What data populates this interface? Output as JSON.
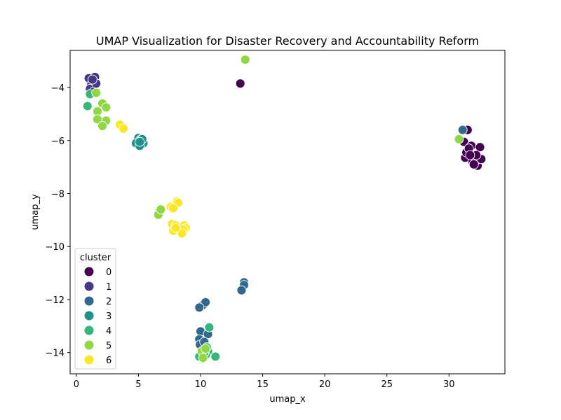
{
  "chart_data": {
    "type": "scatter",
    "title": "UMAP Visualization for Disaster Recovery and Accountability Reform",
    "xlabel": "umap_x",
    "ylabel": "umap_y",
    "xlim": [
      -0.5,
      34.5
    ],
    "ylim": [
      -14.8,
      -2.6
    ],
    "xticks": [
      0,
      5,
      10,
      15,
      20,
      25,
      30
    ],
    "yticks": [
      -14,
      -12,
      -10,
      -8,
      -6,
      -4
    ],
    "grid": false,
    "legend": {
      "title": "cluster",
      "placement": "lower-left"
    },
    "series": [
      {
        "name": "0",
        "color": "#440154",
        "points": [
          [
            13.2,
            -3.85
          ],
          [
            31.2,
            -6.05
          ],
          [
            31.5,
            -5.6
          ],
          [
            31.3,
            -6.65
          ],
          [
            31.4,
            -6.45
          ],
          [
            31.8,
            -6.2
          ],
          [
            31.9,
            -6.8
          ],
          [
            32.1,
            -6.6
          ],
          [
            32.3,
            -6.95
          ],
          [
            32.4,
            -6.7
          ],
          [
            32.5,
            -6.25
          ],
          [
            32.6,
            -6.7
          ],
          [
            31.6,
            -6.3
          ],
          [
            32.2,
            -6.55
          ],
          [
            31.7,
            -6.55
          ],
          [
            32.0,
            -6.9
          ]
        ]
      },
      {
        "name": "1",
        "color": "#443983",
        "points": [
          [
            1.0,
            -3.65
          ],
          [
            1.5,
            -3.6
          ],
          [
            1.3,
            -3.75
          ],
          [
            1.2,
            -3.9
          ],
          [
            1.1,
            -4.05
          ],
          [
            1.4,
            -4.15
          ],
          [
            1.6,
            -3.85
          ],
          [
            1.3,
            -3.7
          ]
        ]
      },
      {
        "name": "2",
        "color": "#31688e",
        "points": [
          [
            13.5,
            -11.35
          ],
          [
            13.5,
            -11.45
          ],
          [
            13.3,
            -11.65
          ],
          [
            10.2,
            -12.2
          ],
          [
            10.4,
            -12.1
          ],
          [
            9.9,
            -12.3
          ],
          [
            10.0,
            -13.2
          ],
          [
            10.6,
            -13.3
          ],
          [
            9.9,
            -13.5
          ],
          [
            9.95,
            -13.7
          ],
          [
            10.3,
            -13.6
          ],
          [
            31.1,
            -5.6
          ]
        ]
      },
      {
        "name": "3",
        "color": "#21918c",
        "points": [
          [
            5.0,
            -5.9
          ],
          [
            5.2,
            -5.95
          ],
          [
            5.4,
            -6.1
          ],
          [
            4.8,
            -6.1
          ],
          [
            5.1,
            -6.2
          ],
          [
            5.2,
            -6.0
          ],
          [
            5.3,
            -5.95
          ],
          [
            5.1,
            -6.05
          ]
        ]
      },
      {
        "name": "4",
        "color": "#35b779",
        "points": [
          [
            0.9,
            -4.7
          ],
          [
            1.1,
            -4.25
          ],
          [
            10.7,
            -13.05
          ],
          [
            11.2,
            -14.15
          ],
          [
            10.6,
            -13.95
          ],
          [
            10.4,
            -14.1
          ],
          [
            10.1,
            -14.2
          ],
          [
            9.9,
            -14.15
          ],
          [
            10.5,
            -13.8
          ],
          [
            10.3,
            -14.0
          ]
        ]
      },
      {
        "name": "5",
        "color": "#90d743",
        "points": [
          [
            13.6,
            -2.95
          ],
          [
            1.6,
            -4.2
          ],
          [
            2.1,
            -4.6
          ],
          [
            2.4,
            -4.75
          ],
          [
            1.7,
            -4.9
          ],
          [
            2.4,
            -5.25
          ],
          [
            1.7,
            -5.2
          ],
          [
            2.1,
            -5.45
          ],
          [
            30.8,
            -5.95
          ],
          [
            6.7,
            -8.65
          ],
          [
            6.6,
            -8.8
          ],
          [
            6.8,
            -8.6
          ],
          [
            10.1,
            -13.95
          ],
          [
            10.2,
            -14.2
          ],
          [
            10.4,
            -13.85
          ]
        ]
      },
      {
        "name": "6",
        "color": "#fde725",
        "points": [
          [
            3.5,
            -5.4
          ],
          [
            3.8,
            -5.55
          ],
          [
            8.1,
            -8.3
          ],
          [
            8.2,
            -8.35
          ],
          [
            7.6,
            -8.5
          ],
          [
            7.8,
            -8.55
          ],
          [
            7.7,
            -9.15
          ],
          [
            8.0,
            -9.2
          ],
          [
            8.7,
            -9.2
          ],
          [
            8.8,
            -9.3
          ],
          [
            8.6,
            -9.35
          ],
          [
            7.8,
            -9.4
          ],
          [
            8.5,
            -9.5
          ],
          [
            8.0,
            -9.3
          ]
        ]
      }
    ]
  }
}
